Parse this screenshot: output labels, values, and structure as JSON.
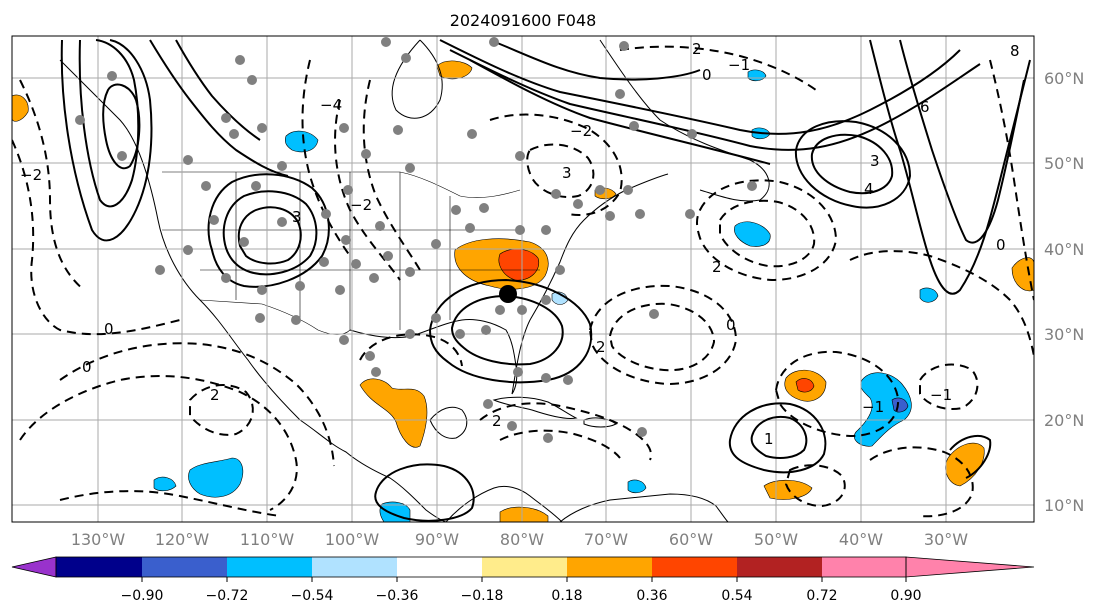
{
  "title": "2024091600 F048",
  "map": {
    "lon_labels": [
      "130°W",
      "120°W",
      "110°W",
      "100°W",
      "90°W",
      "80°W",
      "70°W",
      "60°W",
      "50°W",
      "40°W",
      "30°W"
    ],
    "lat_labels": [
      "60°N",
      "50°N",
      "40°N",
      "30°N",
      "20°N",
      "10°N"
    ],
    "gridlines": true
  },
  "colorbar": {
    "ticks": [
      "−0.90",
      "−0.72",
      "−0.54",
      "−0.36",
      "−0.18",
      "0.18",
      "0.36",
      "0.54",
      "0.72",
      "0.90"
    ],
    "colors": [
      "#9932cc",
      "#00008b",
      "#3a5fcd",
      "#00bfff",
      "#b0e2ff",
      "#ffffff",
      "#ffec8b",
      "#ffa500",
      "#ff4500",
      "#b22222",
      "#ff82ab"
    ],
    "extend": "both"
  },
  "contour_labels": [
    "0",
    "0",
    "2",
    "3",
    "−2",
    "−4",
    "−2",
    "2",
    "3",
    "−1",
    "2",
    "0",
    "1",
    "0",
    "−1",
    "−1",
    "2",
    "4",
    "3",
    "6",
    "8",
    "0",
    "−2",
    "2"
  ],
  "marker": {
    "color": "#000000"
  }
}
